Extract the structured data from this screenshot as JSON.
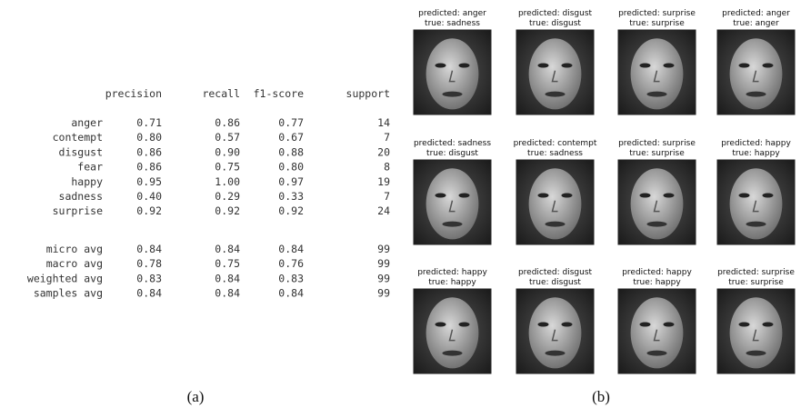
{
  "report": {
    "header": [
      "precision",
      "recall",
      "f1-score",
      "support"
    ],
    "rows": [
      [
        "anger",
        "0.71",
        "0.86",
        "0.77",
        "14"
      ],
      [
        "contempt",
        "0.80",
        "0.57",
        "0.67",
        "7"
      ],
      [
        "disgust",
        "0.86",
        "0.90",
        "0.88",
        "20"
      ],
      [
        "fear",
        "0.86",
        "0.75",
        "0.80",
        "8"
      ],
      [
        "happy",
        "0.95",
        "1.00",
        "0.97",
        "19"
      ],
      [
        "sadness",
        "0.40",
        "0.29",
        "0.33",
        "7"
      ],
      [
        "surprise",
        "0.92",
        "0.92",
        "0.92",
        "24"
      ]
    ],
    "averages": [
      [
        "micro avg",
        "0.84",
        "0.84",
        "0.84",
        "99"
      ],
      [
        "macro avg",
        "0.78",
        "0.75",
        "0.76",
        "99"
      ],
      [
        "weighted avg",
        "0.83",
        "0.84",
        "0.83",
        "99"
      ],
      [
        "samples avg",
        "0.84",
        "0.84",
        "0.84",
        "99"
      ]
    ],
    "caption": "(a)"
  },
  "grid": {
    "images": [
      {
        "predicted": "predicted: anger",
        "true": "true: sadness"
      },
      {
        "predicted": "predicted: disgust",
        "true": "true: disgust"
      },
      {
        "predicted": "predicted: surprise",
        "true": "true: surprise"
      },
      {
        "predicted": "predicted: anger",
        "true": "true: anger"
      },
      {
        "predicted": "predicted: sadness",
        "true": "true: disgust"
      },
      {
        "predicted": "predicted: contempt",
        "true": "true: sadness"
      },
      {
        "predicted": "predicted: surprise",
        "true": "true: surprise"
      },
      {
        "predicted": "predicted: happy",
        "true": "true: happy"
      },
      {
        "predicted": "predicted: happy",
        "true": "true: happy"
      },
      {
        "predicted": "predicted: disgust",
        "true": "true: disgust"
      },
      {
        "predicted": "predicted: happy",
        "true": "true: happy"
      },
      {
        "predicted": "predicted: surprise",
        "true": "true: surprise"
      }
    ],
    "caption": "(b)"
  }
}
